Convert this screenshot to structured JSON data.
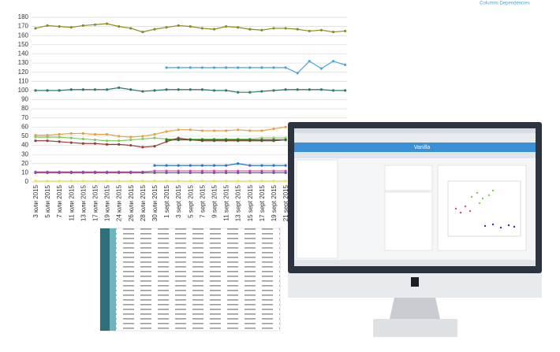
{
  "header": {
    "text": "Columns Dependencies"
  },
  "screen": {
    "logo": "Vanilla"
  },
  "chart_data": {
    "type": "line",
    "categories": [
      "3 юли 2015",
      "5 юли 2015",
      "7 юли 2015",
      "11 юли 2015",
      "13 юли 2015",
      "17 юли 2015",
      "19 юли 2015",
      "24 юли 2015",
      "26 юли 2015",
      "28 юли 2015",
      "30 юли 2015",
      "1 sept 2015",
      "3 sept 2015",
      "5 sept 2015",
      "7 sept 2015",
      "9 sept 2015",
      "11 sept 2015",
      "13 sept 2015",
      "15 sept 2015",
      "17 sept 2015",
      "19 sept 2015",
      "21 sept 2015",
      null,
      null,
      null,
      null,
      null
    ],
    "ylim": [
      0,
      180
    ],
    "yticks": [
      0,
      10,
      20,
      30,
      40,
      50,
      60,
      70,
      80,
      90,
      100,
      110,
      120,
      130,
      140,
      150,
      160,
      170,
      180
    ],
    "grid": true,
    "series": [
      {
        "name": "olive",
        "color": "#8c8c1e",
        "values": [
          168,
          171,
          170,
          169,
          171,
          172,
          173,
          170,
          168,
          164,
          167,
          169,
          171,
          170,
          168,
          167,
          170,
          169,
          167,
          166,
          168,
          168,
          167,
          165,
          166,
          164,
          165
        ]
      },
      {
        "name": "light-blue",
        "color": "#4aa6d6",
        "values": [
          null,
          null,
          null,
          null,
          null,
          null,
          null,
          null,
          null,
          null,
          null,
          125,
          125,
          125,
          125,
          125,
          125,
          125,
          125,
          125,
          125,
          125,
          119,
          132,
          124,
          132,
          128
        ]
      },
      {
        "name": "teal",
        "color": "#2f7a70",
        "values": [
          100,
          100,
          100,
          101,
          101,
          101,
          101,
          103,
          101,
          99,
          100,
          101,
          101,
          101,
          101,
          100,
          100,
          98,
          98,
          99,
          100,
          101,
          101,
          101,
          101,
          100,
          100
        ]
      },
      {
        "name": "orange",
        "color": "#e8a23c",
        "values": [
          51,
          51,
          52,
          53,
          53,
          52,
          52,
          50,
          49,
          50,
          52,
          55,
          57,
          57,
          56,
          56,
          56,
          57,
          56,
          56,
          58,
          60,
          null,
          null,
          null,
          null,
          null
        ]
      },
      {
        "name": "green",
        "color": "#7ccf5a",
        "values": [
          49,
          49,
          49,
          48,
          47,
          46,
          45,
          45,
          46,
          47,
          48,
          47,
          47,
          47,
          47,
          47,
          47,
          47,
          47,
          48,
          48,
          48,
          null,
          null,
          null,
          null,
          null
        ]
      },
      {
        "name": "dark-red",
        "color": "#9a3b3b",
        "values": [
          45,
          45,
          44,
          43,
          42,
          42,
          41,
          41,
          40,
          38,
          39,
          44,
          48,
          46,
          45,
          45,
          45,
          45,
          45,
          45,
          45,
          46,
          null,
          null,
          null,
          null,
          null
        ]
      },
      {
        "name": "dark-green",
        "color": "#2b6e2b",
        "values": [
          null,
          null,
          null,
          null,
          null,
          null,
          null,
          null,
          null,
          null,
          null,
          46,
          46,
          46,
          46,
          46,
          46,
          46,
          46,
          46,
          46,
          46,
          null,
          null,
          null,
          null,
          null
        ]
      },
      {
        "name": "blue",
        "color": "#2272d6",
        "values": [
          null,
          null,
          null,
          null,
          null,
          null,
          null,
          null,
          null,
          null,
          18,
          18,
          18,
          18,
          18,
          18,
          18,
          20,
          18,
          18,
          18,
          18,
          null,
          null,
          null,
          null,
          null
        ]
      },
      {
        "name": "pink",
        "color": "#d64aa6",
        "values": [
          11,
          11,
          11,
          11,
          11,
          11,
          11,
          11,
          11,
          11,
          12,
          12,
          12,
          12,
          12,
          12,
          12,
          12,
          12,
          12,
          12,
          12,
          null,
          null,
          null,
          null,
          null
        ]
      },
      {
        "name": "purple",
        "color": "#7a4ab8",
        "values": [
          10,
          10,
          10,
          10,
          10,
          10,
          10,
          10,
          10,
          10,
          10,
          10,
          10,
          10,
          10,
          10,
          10,
          10,
          10,
          10,
          10,
          10,
          null,
          null,
          null,
          null,
          null
        ]
      },
      {
        "name": "yellow",
        "color": "#f2e04a",
        "values": [
          1,
          1,
          1,
          1,
          1,
          1,
          1,
          1,
          1,
          1,
          1,
          1,
          1,
          1,
          1,
          1,
          1,
          1,
          1,
          1,
          1,
          1,
          null,
          null,
          null,
          null,
          null
        ]
      }
    ]
  }
}
